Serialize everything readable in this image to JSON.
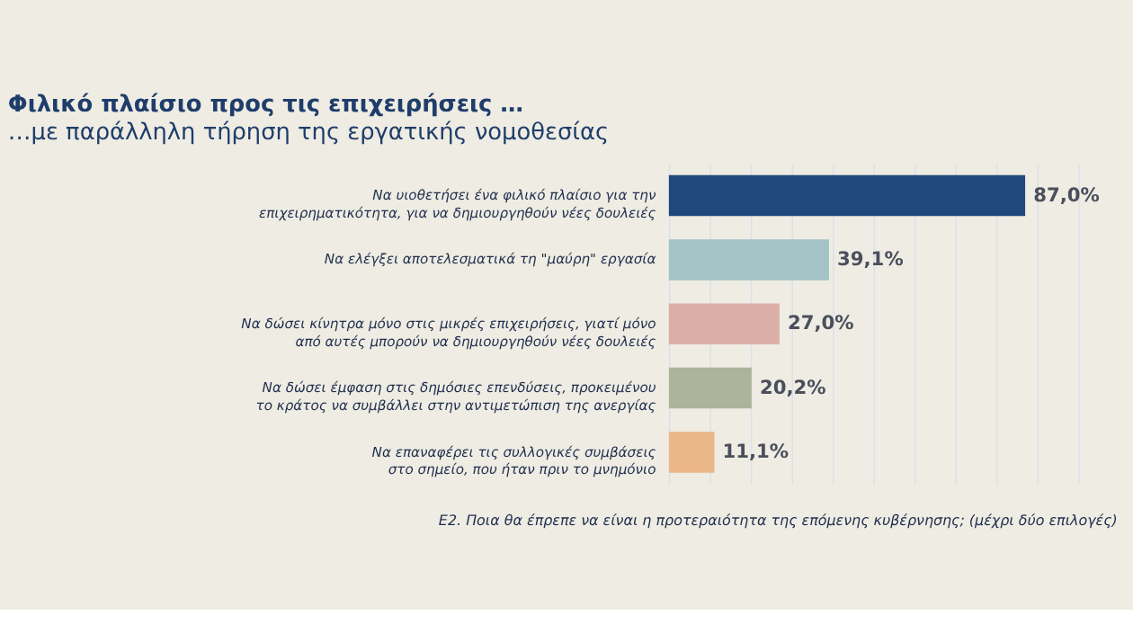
{
  "chart_data": {
    "type": "bar",
    "orientation": "horizontal",
    "title": "Φιλικό πλαίσιο προς τις επιχειρήσεις …",
    "subtitle": "…με παράλληλη τήρηση της εργατικής νομοθεσίας",
    "categories": [
      "Να υιοθετήσει ένα φιλικό πλαίσιο για την\nεπιχειρηματικότητα, για να δημιουργηθούν νέες δουλειές",
      "Να ελέγξει αποτελεσματικά τη \"μαύρη\" εργασία",
      "Να δώσει κίνητρα μόνο στις μικρές επιχειρήσεις, γιατί μόνο\nαπό αυτές μπορούν να δημιουργηθούν νέες δουλειές",
      "Να δώσει έμφαση στις δημόσιες επενδύσεις, προκειμένου\nτο κράτος να συμβάλλει στην αντιμετώπιση της ανεργίας",
      "Να επαναφέρει τις συλλογικές συμβάσεις\nστο σημείο, που ήταν πριν το μνημόνιο"
    ],
    "values": [
      87.0,
      39.1,
      27.0,
      20.2,
      11.1
    ],
    "value_labels": [
      "87,0%",
      "39,1%",
      "27,0%",
      "20,2%",
      "11,1%"
    ],
    "colors": [
      "#20487c",
      "#a3c3c6",
      "#dcaea8",
      "#acb499",
      "#ebb688"
    ],
    "xlim": [
      0,
      100
    ],
    "grid": "x",
    "tick_labels": "y",
    "legend": false,
    "annotations": [
      "Ε2. Ποια θα έπρεπε να είναι η προτεραιότητα της επόμενης κυβέρνησης; (μέχρι δύο επιλογές)"
    ]
  }
}
